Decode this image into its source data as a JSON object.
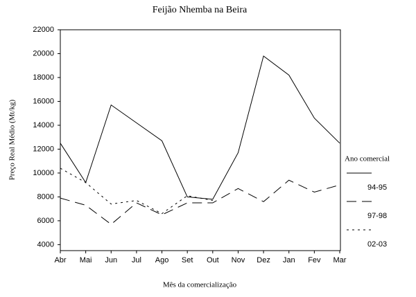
{
  "chart_data": {
    "type": "line",
    "title": "Feijão Nhemba na Beira",
    "x_label": "Mês da comercialização",
    "y_label": "Preço Real Médio (Mt/kg)",
    "legend_title": "Ano comercial",
    "categories": [
      "Abr",
      "Mai",
      "Jun",
      "Jul",
      "Ago",
      "Set",
      "Out",
      "Nov",
      "Dez",
      "Jan",
      "Fev",
      "Mar"
    ],
    "series": [
      {
        "name": "94-95",
        "color": "#000000",
        "dash": "solid",
        "values": [
          12500,
          9200,
          15700,
          14200,
          12700,
          8000,
          7800,
          11700,
          19800,
          18200,
          14600,
          12500
        ]
      },
      {
        "name": "97-98",
        "color": "#000000",
        "dash": "long",
        "values": [
          7900,
          7300,
          5700,
          7500,
          6500,
          7500,
          7500,
          8700,
          7600,
          9400,
          8400,
          9000
        ]
      },
      {
        "name": "02-03",
        "color": "#000000",
        "dash": "dot",
        "values": [
          10400,
          9200,
          7400,
          7700,
          6600,
          8100,
          7700,
          null,
          null,
          null,
          null,
          null
        ]
      }
    ],
    "ylim": [
      3500,
      22000
    ],
    "yticks": [
      4000,
      6000,
      8000,
      10000,
      12000,
      14000,
      16000,
      18000,
      20000,
      22000
    ],
    "grid": false
  }
}
